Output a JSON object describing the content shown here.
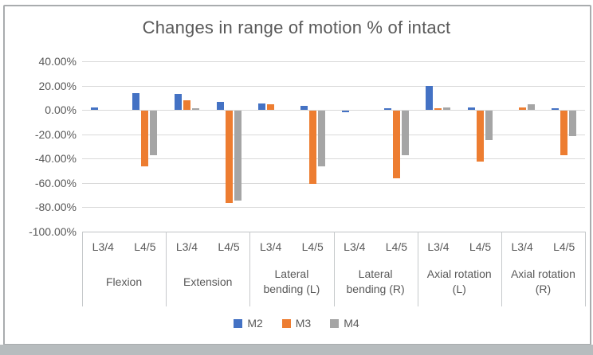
{
  "figure_title": "Changes in range of motion % of intact",
  "chart_data": {
    "type": "bar",
    "title": "Changes in range of motion % of intact",
    "ylabel": "",
    "xlabel": "",
    "ylim": [
      -100,
      40
    ],
    "grid": true,
    "legend_position": "bottom",
    "y_ticks": [
      "40.00%",
      "20.00%",
      "0.00%",
      "-20.00%",
      "-40.00%",
      "-60.00%",
      "-80.00%",
      "-100.00%"
    ],
    "sub_labels": [
      "L3/4",
      "L4/5"
    ],
    "groups": [
      {
        "label": "Flexion",
        "label_lines": [
          "Flexion"
        ]
      },
      {
        "label": "Extension",
        "label_lines": [
          "Extension"
        ]
      },
      {
        "label": "Lateral bending (L)",
        "label_lines": [
          "Lateral",
          "bending (L)"
        ]
      },
      {
        "label": "Lateral bending (R)",
        "label_lines": [
          "Lateral",
          "bending (R)"
        ]
      },
      {
        "label": "Axial rotation (L)",
        "label_lines": [
          "Axial rotation",
          "(L)"
        ]
      },
      {
        "label": "Axial rotation (R)",
        "label_lines": [
          "Axial rotation",
          "(R)"
        ]
      }
    ],
    "categories": [
      "Flexion L3/4",
      "Flexion L4/5",
      "Extension L3/4",
      "Extension L4/5",
      "Lateral bending (L) L3/4",
      "Lateral bending (L) L4/5",
      "Lateral bending (R) L3/4",
      "Lateral bending (R) L4/5",
      "Axial rotation (L) L3/4",
      "Axial rotation (L) L4/5",
      "Axial rotation (R) L3/4",
      "Axial rotation (R) L4/5"
    ],
    "value_unit": "percent",
    "series": [
      {
        "name": "M2",
        "color": "#4472C4",
        "values": [
          2,
          14,
          13,
          6.5,
          5.5,
          3,
          -1.5,
          1.5,
          20,
          2,
          0,
          1
        ]
      },
      {
        "name": "M3",
        "color": "#ED7D31",
        "values": [
          0,
          -46,
          8,
          -76,
          4.5,
          -60,
          0,
          -56,
          1,
          -42,
          2,
          -37
        ]
      },
      {
        "name": "M4",
        "color": "#A5A5A5",
        "values": [
          0,
          -37,
          1,
          -74,
          0,
          -46,
          0,
          -37,
          2,
          -24,
          4.5,
          -21
        ]
      }
    ]
  },
  "colors": {
    "title_text": "#595959",
    "axis_text": "#595959",
    "gridline": "#d9d9d9",
    "series_m2": "#4472C4",
    "series_m3": "#ED7D31",
    "series_m4": "#A5A5A5"
  }
}
